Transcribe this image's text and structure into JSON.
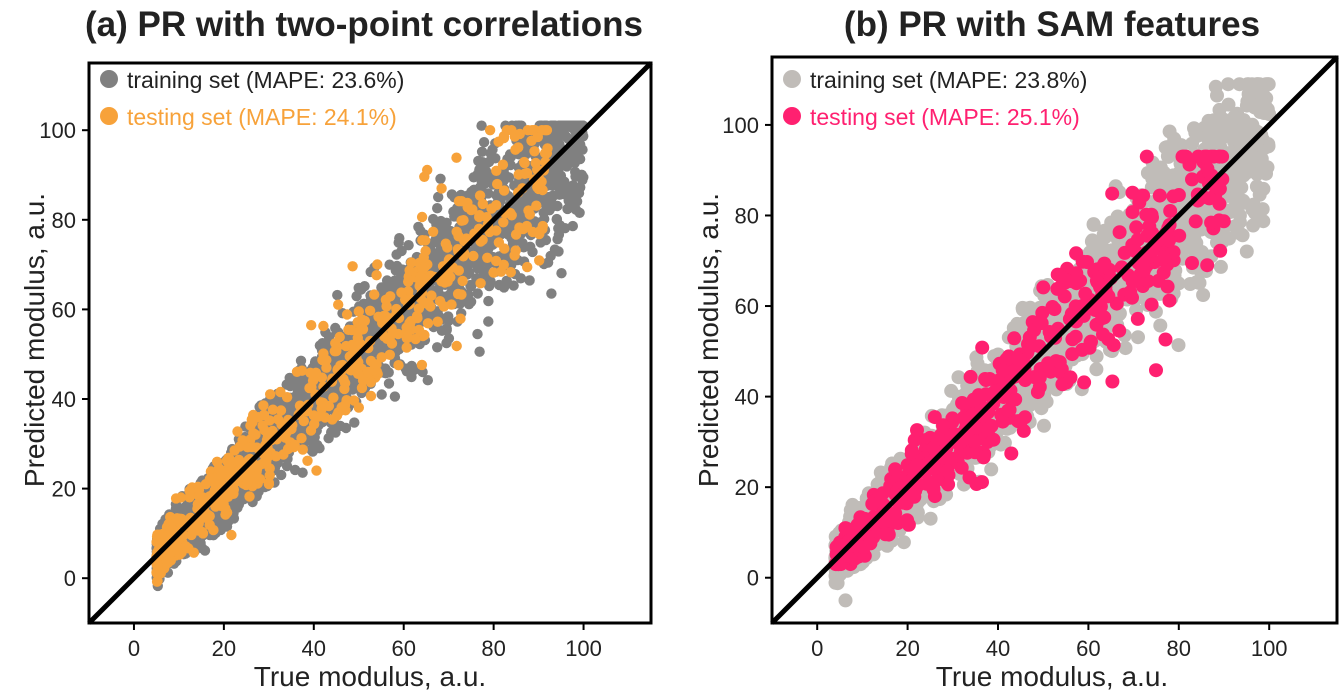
{
  "chart_data": [
    {
      "type": "scatter",
      "title": "(a) PR with two-point correlations",
      "xlabel": "True modulus, a.u.",
      "ylabel": "Predicted modulus, a.u.",
      "xlim": [
        -10,
        115
      ],
      "ylim": [
        -10,
        115
      ],
      "xticks": [
        0,
        20,
        40,
        60,
        80,
        100
      ],
      "yticks": [
        0,
        20,
        40,
        60,
        80,
        100
      ],
      "grid": false,
      "legend_position": "top-left",
      "identity_line": true,
      "series": [
        {
          "name": "training set (MAPE: 23.6%)",
          "color": "#808080",
          "count": 2400,
          "x_range": [
            5,
            100
          ],
          "y_range": [
            -7,
            101
          ],
          "relative_error": 0.236
        },
        {
          "name": "testing set (MAPE: 24.1%)",
          "color": "#F7A23A",
          "count": 600,
          "x_range": [
            5,
            92
          ],
          "y_range": [
            -4,
            100
          ],
          "relative_error": 0.241
        }
      ]
    },
    {
      "type": "scatter",
      "title": "(b) PR with SAM features",
      "xlabel": "True modulus, a.u.",
      "ylabel": "Predicted modulus, a.u.",
      "xlim": [
        -10,
        115
      ],
      "ylim": [
        -10,
        115
      ],
      "xticks": [
        0,
        20,
        40,
        60,
        80,
        100
      ],
      "yticks": [
        0,
        20,
        40,
        60,
        80,
        100
      ],
      "grid": false,
      "legend_position": "top-left",
      "identity_line": true,
      "series": [
        {
          "name": "training set (MAPE: 23.8%)",
          "color": "#C0BCB8",
          "count": 2000,
          "x_range": [
            4,
            100
          ],
          "y_range": [
            -5,
            109
          ],
          "relative_error": 0.238
        },
        {
          "name": "testing set (MAPE: 25.1%)",
          "color": "#FF2070",
          "count": 500,
          "x_range": [
            4,
            90
          ],
          "y_range": [
            3,
            93
          ],
          "relative_error": 0.251
        }
      ]
    }
  ]
}
